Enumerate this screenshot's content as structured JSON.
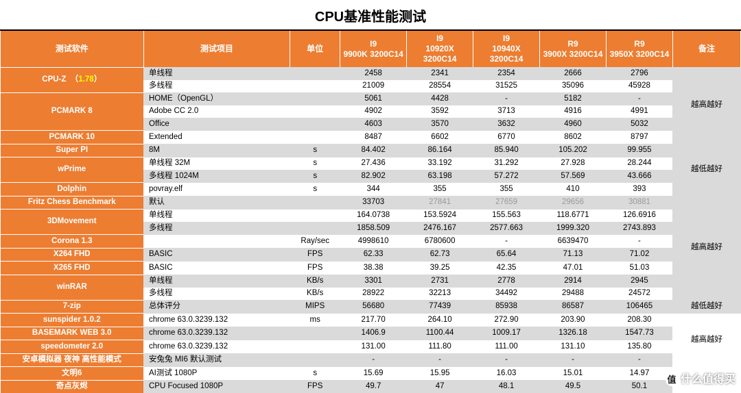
{
  "title": "CPU基准性能测试",
  "columns": [
    "测试软件",
    "测试项目",
    "单位",
    "I9 9900K 3200C14",
    "I9 10920X 3200C14",
    "I9 10940X 3200C14",
    "R9 3900X 3200C14",
    "R9 3950X 3200C14",
    "备注"
  ],
  "column_classes": [
    "col-sw",
    "col-item",
    "col-unit",
    "col-cpu",
    "col-cpu",
    "col-cpu",
    "col-cpu",
    "col-cpu",
    "col-note"
  ],
  "colors": {
    "header_bg": "#ed7d31",
    "band_bg": "#dadada",
    "text": "#000000",
    "gray": "#999999",
    "highlight": "#ffff00"
  },
  "groups": [
    {
      "software": "CPU-Z  （1.78）",
      "software_html": "CPU-Z&nbsp;&nbsp;（<span class='cpuz-ver'>1.78</span>）",
      "rows": [
        {
          "item": "单线程",
          "unit": "",
          "v": [
            "2458",
            "2341",
            "2354",
            "2666",
            "2796"
          ],
          "band": true
        },
        {
          "item": "多线程",
          "unit": "",
          "v": [
            "21009",
            "28554",
            "31525",
            "35096",
            "45928"
          ],
          "band": false
        }
      ],
      "note": "越高越好",
      "note_span": 4
    },
    {
      "software": "PCMARK 8",
      "rows": [
        {
          "item": "HOME（OpenGL）",
          "unit": "",
          "v": [
            "5061",
            "4428",
            "-",
            "5182",
            "-"
          ],
          "band": true
        },
        {
          "item": "Adobe CC 2.0",
          "unit": "",
          "v": [
            "4902",
            "3592",
            "3713",
            "4916",
            "4991"
          ],
          "band": false
        },
        {
          "item": "Office",
          "unit": "",
          "v": [
            "4603",
            "3570",
            "3632",
            "4960",
            "5032"
          ],
          "band": true
        }
      ]
    },
    {
      "software": "PCMARK 10",
      "rows": [
        {
          "item": "Extended",
          "unit": "",
          "v": [
            "8487",
            "6602",
            "6770",
            "8602",
            "8797"
          ],
          "band": false
        }
      ],
      "note": "",
      "note_span": 0
    },
    {
      "software": "Super PI",
      "rows": [
        {
          "item": "8M",
          "unit": "s",
          "v": [
            "84.402",
            "86.164",
            "85.940",
            "105.202",
            "99.955"
          ],
          "band": true
        }
      ],
      "note": "越低越好",
      "note_span": 4
    },
    {
      "software": "wPrime",
      "rows": [
        {
          "item": "单线程 32M",
          "unit": "s",
          "v": [
            "27.436",
            "33.192",
            "31.292",
            "27.928",
            "28.244"
          ],
          "band": false
        },
        {
          "item": "多线程 1024M",
          "unit": "s",
          "v": [
            "82.902",
            "63.198",
            "57.272",
            "57.569",
            "43.666"
          ],
          "band": true
        }
      ]
    },
    {
      "software": "Dolphin",
      "rows": [
        {
          "item": "povray.elf",
          "unit": "s",
          "v": [
            "344",
            "355",
            "355",
            "410",
            "393"
          ],
          "band": false
        }
      ]
    },
    {
      "software": "Fritz Chess Benchmark",
      "rows": [
        {
          "item": "默认",
          "unit": "",
          "v": [
            "33703",
            "27841",
            "27659",
            "29656",
            "30881"
          ],
          "band": true,
          "gray": [
            1,
            2,
            3,
            4
          ]
        }
      ],
      "note": "越高越好",
      "note_span": 8
    },
    {
      "software": "3DMovement",
      "rows": [
        {
          "item": "单线程",
          "unit": "",
          "v": [
            "164.0738",
            "153.5924",
            "155.563",
            "118.6771",
            "126.6916"
          ],
          "band": false
        },
        {
          "item": "多线程",
          "unit": "",
          "v": [
            "1858.509",
            "2476.167",
            "2577.663",
            "1999.320",
            "2743.893"
          ],
          "band": true
        }
      ]
    },
    {
      "software": "Corona 1.3",
      "rows": [
        {
          "item": "",
          "unit": "Ray/sec",
          "v": [
            "4998610",
            "6780600",
            "-",
            "6639470",
            "-"
          ],
          "band": false
        }
      ]
    },
    {
      "software": "X264 FHD",
      "rows": [
        {
          "item": "BASIC",
          "unit": "FPS",
          "v": [
            "62.33",
            "62.73",
            "65.64",
            "71.13",
            "71.02"
          ],
          "band": true
        }
      ]
    },
    {
      "software": "X265 FHD",
      "rows": [
        {
          "item": "BASIC",
          "unit": "FPS",
          "v": [
            "38.38",
            "39.25",
            "42.35",
            "47.01",
            "51.03"
          ],
          "band": false
        }
      ]
    },
    {
      "software": "winRAR",
      "rows": [
        {
          "item": "单线程",
          "unit": "KB/s",
          "v": [
            "3301",
            "2731",
            "2778",
            "2914",
            "2945"
          ],
          "band": true
        },
        {
          "item": "多线程",
          "unit": "KB/s",
          "v": [
            "28922",
            "32213",
            "34492",
            "29488",
            "24572"
          ],
          "band": false
        }
      ]
    },
    {
      "software": "7-zip",
      "rows": [
        {
          "item": "总体评分",
          "unit": "MIPS",
          "v": [
            "56680",
            "77439",
            "85938",
            "86587",
            "106465"
          ],
          "band": true
        }
      ]
    },
    {
      "software": "sunspider 1.0.2",
      "rows": [
        {
          "item": "chrome 63.0.3239.132",
          "unit": "ms",
          "v": [
            "217.70",
            "264.10",
            "272.90",
            "203.90",
            "208.30"
          ],
          "band": false
        }
      ],
      "note": "越低越好",
      "note_span": 1
    },
    {
      "software": "BASEMARK WEB 3.0",
      "rows": [
        {
          "item": "chrome 63.0.3239.132",
          "unit": "",
          "v": [
            "1406.9",
            "1100.44",
            "1009.17",
            "1326.18",
            "1547.73"
          ],
          "band": true
        }
      ],
      "note": "越高越好",
      "note_span": 4
    },
    {
      "software": "speedometer 2.0",
      "rows": [
        {
          "item": "chrome 63.0.3239.132",
          "unit": "",
          "v": [
            "131.00",
            "111.80",
            "111.00",
            "131.10",
            "135.80"
          ],
          "band": false
        }
      ]
    },
    {
      "software": "安卓模拟器 夜神 高性能模式",
      "rows": [
        {
          "item": "安兔兔 MI6 默认测试",
          "unit": "",
          "v": [
            "-",
            "-",
            "-",
            "-",
            "-"
          ],
          "band": true
        }
      ]
    },
    {
      "software": "文明6",
      "rows": [
        {
          "item": "AI测试 1080P",
          "unit": "s",
          "v": [
            "15.69",
            "15.95",
            "16.03",
            "15.01",
            "14.97"
          ],
          "band": false
        }
      ]
    },
    {
      "software": "奇点灰烬",
      "rows": [
        {
          "item": "CPU Focused 1080P",
          "unit": "FPS",
          "v": [
            "49.7",
            "47",
            "48.1",
            "49.5",
            "50.1"
          ],
          "band": true
        }
      ]
    }
  ],
  "watermark": {
    "main": "什么值得买",
    "sub": "值"
  }
}
